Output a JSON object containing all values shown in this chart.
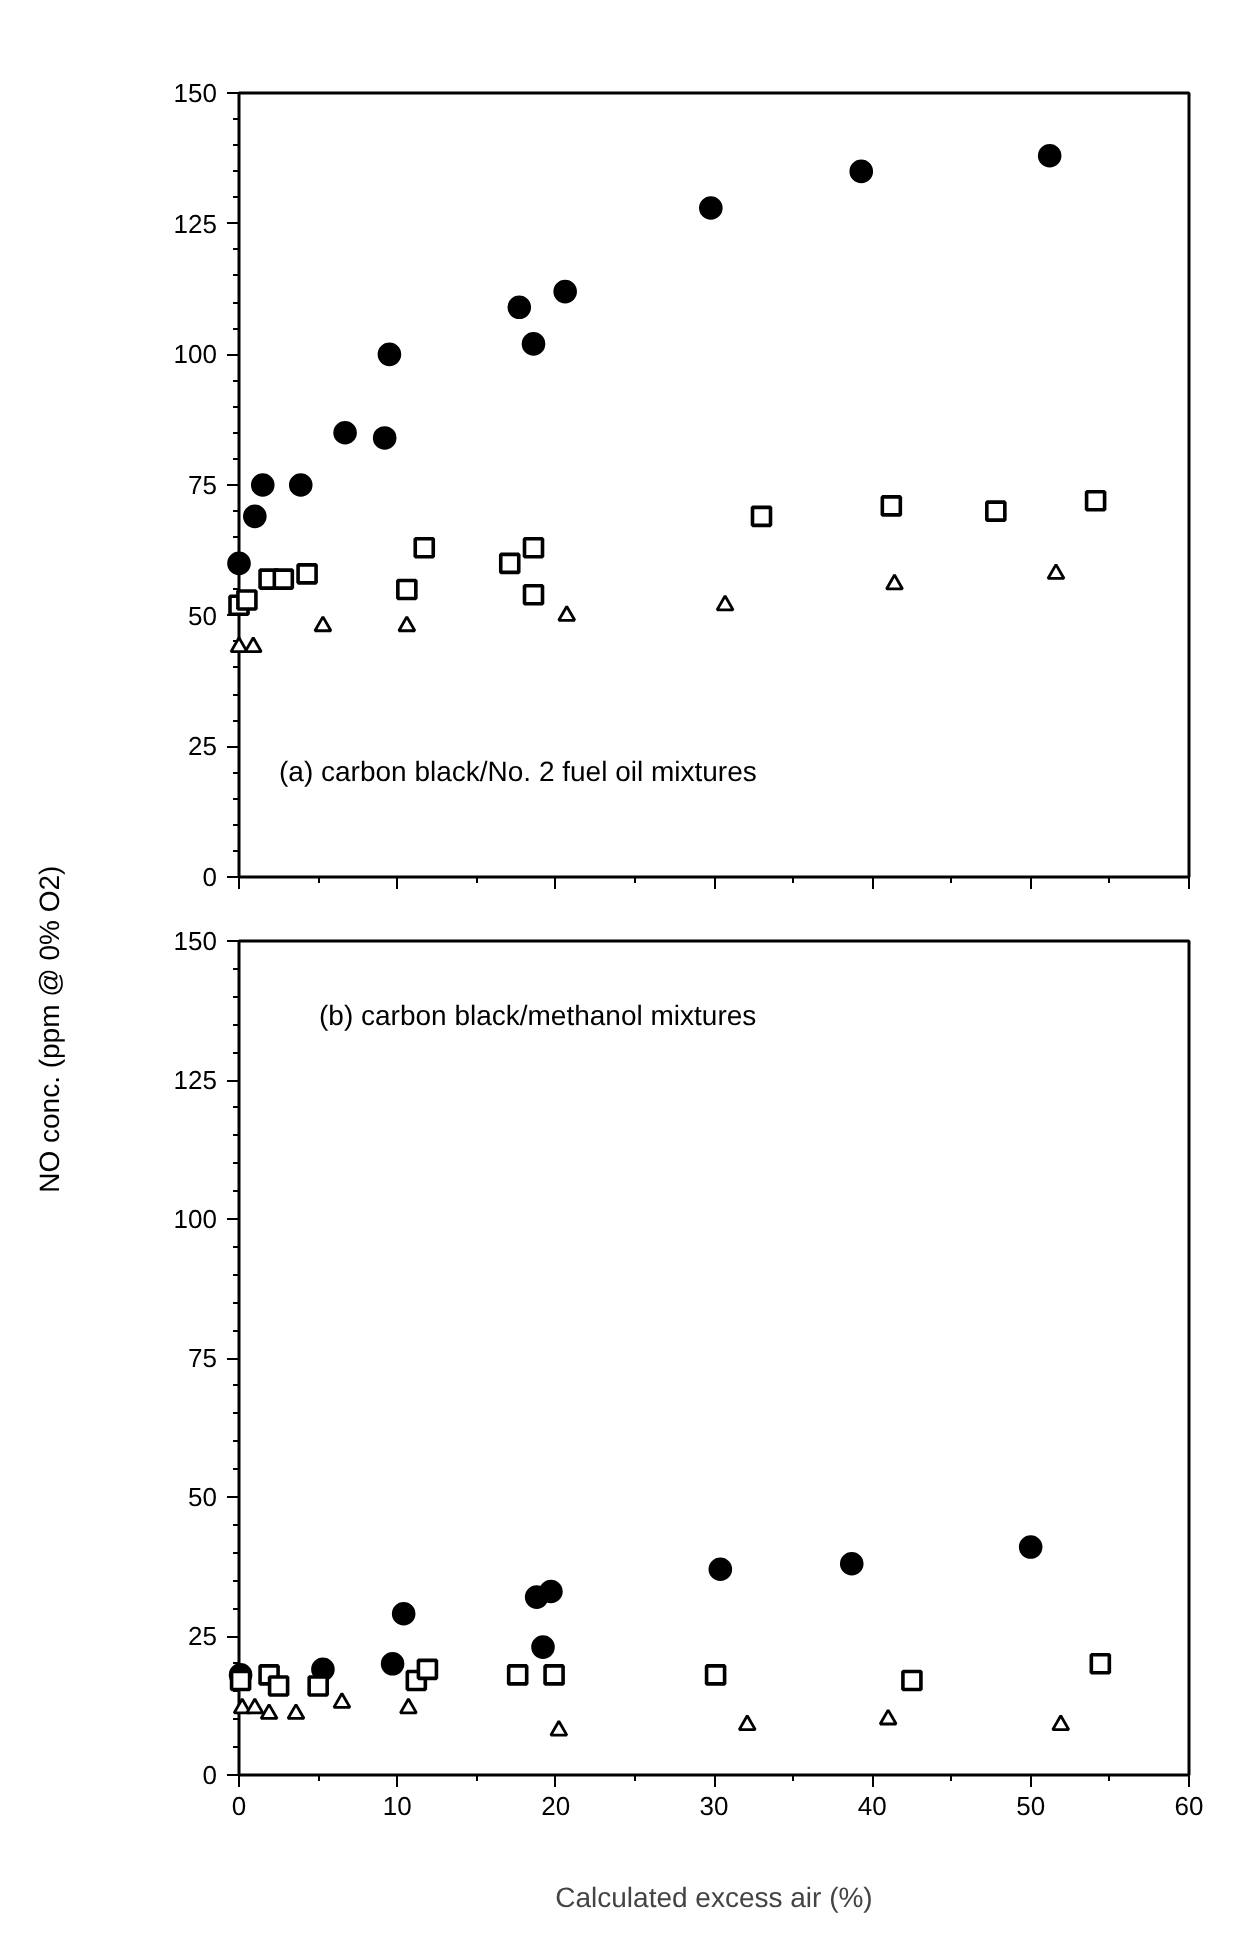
{
  "chart_data": [
    {
      "type": "scatter",
      "ylabel": "NO conc. (ppm @ 0% O2)",
      "annotations": [
        "(a) carbon black/No. 2 fuel oil mixtures"
      ],
      "tick_labels": "y",
      "xlim": [
        0,
        60
      ],
      "ylim": [
        0,
        150
      ],
      "xticks": [
        0,
        {
          "value": 5,
          "label": null
        },
        10,
        {
          "value": 15,
          "label": null
        },
        20,
        {
          "value": 25,
          "label": null
        },
        30,
        {
          "value": 35,
          "label": null
        },
        40,
        {
          "value": 45,
          "label": null
        },
        50,
        {
          "value": 55,
          "label": null
        },
        60
      ],
      "yticks": [
        0,
        {
          "value": 5,
          "label": null
        },
        {
          "value": 10,
          "label": null
        },
        {
          "value": 15,
          "label": null
        },
        {
          "value": 20,
          "label": null
        },
        25,
        {
          "value": 30,
          "label": null
        },
        {
          "value": 35,
          "label": null
        },
        {
          "value": 40,
          "label": null
        },
        {
          "value": 45,
          "label": null
        },
        50,
        {
          "value": 55,
          "label": null
        },
        {
          "value": 60,
          "label": null
        },
        {
          "value": 65,
          "label": null
        },
        {
          "value": 70,
          "label": null
        },
        75,
        {
          "value": 80,
          "label": null
        },
        {
          "value": 85,
          "label": null
        },
        {
          "value": 90,
          "label": null
        },
        {
          "value": 95,
          "label": null
        },
        100,
        {
          "value": 105,
          "label": null
        },
        {
          "value": 110,
          "label": null
        },
        {
          "value": 115,
          "label": null
        },
        {
          "value": 120,
          "label": null
        },
        125,
        {
          "value": 130,
          "label": null
        },
        {
          "value": 135,
          "label": null
        },
        {
          "value": 140,
          "label": null
        },
        {
          "value": 145,
          "label": null
        },
        150
      ],
      "series": [
        {
          "marker": "circle",
          "color": "#000000",
          "x": [
            0,
            1,
            1.5,
            3.9,
            6.7,
            9.2,
            9.5,
            17.7,
            18.6,
            20.6,
            29.8,
            39.3,
            51.2
          ],
          "values": [
            60,
            69,
            75,
            75,
            85,
            84,
            100,
            109,
            102,
            112,
            128,
            135,
            138
          ]
        },
        {
          "marker": "square",
          "color": "#000000",
          "x": [
            0,
            0.5,
            1.9,
            2.8,
            4.3,
            10.6,
            11.7,
            17.1,
            18.6,
            18.6,
            33,
            41.2,
            47.8,
            54.1
          ],
          "values": [
            52,
            53,
            57,
            57,
            58,
            55,
            63,
            60,
            63,
            54,
            69,
            71,
            70,
            72
          ]
        },
        {
          "marker": "triangle",
          "color": "#000000",
          "x": [
            0,
            0.9,
            5.3,
            10.6,
            20.7,
            30.7,
            41.4,
            51.6
          ],
          "values": [
            44,
            44,
            48,
            48,
            50,
            52,
            56,
            58
          ]
        }
      ]
    },
    {
      "type": "scatter",
      "xlabel": "Calculated excess air (%)",
      "annotations": [
        "(b) carbon black/methanol mixtures"
      ],
      "xlim": [
        0,
        60
      ],
      "ylim": [
        0,
        150
      ],
      "xticks": [
        0,
        {
          "value": 5,
          "label": null
        },
        10,
        {
          "value": 15,
          "label": null
        },
        20,
        {
          "value": 25,
          "label": null
        },
        30,
        {
          "value": 35,
          "label": null
        },
        40,
        {
          "value": 45,
          "label": null
        },
        50,
        {
          "value": 55,
          "label": null
        },
        60
      ],
      "yticks": [
        0,
        {
          "value": 5,
          "label": null
        },
        {
          "value": 10,
          "label": null
        },
        {
          "value": 15,
          "label": null
        },
        {
          "value": 20,
          "label": null
        },
        25,
        {
          "value": 30,
          "label": null
        },
        {
          "value": 35,
          "label": null
        },
        {
          "value": 40,
          "label": null
        },
        {
          "value": 45,
          "label": null
        },
        50,
        {
          "value": 55,
          "label": null
        },
        {
          "value": 60,
          "label": null
        },
        {
          "value": 65,
          "label": null
        },
        {
          "value": 70,
          "label": null
        },
        75,
        {
          "value": 80,
          "label": null
        },
        {
          "value": 85,
          "label": null
        },
        {
          "value": 90,
          "label": null
        },
        {
          "value": 95,
          "label": null
        },
        100,
        {
          "value": 105,
          "label": null
        },
        {
          "value": 110,
          "label": null
        },
        {
          "value": 115,
          "label": null
        },
        {
          "value": 120,
          "label": null
        },
        125,
        {
          "value": 130,
          "label": null
        },
        {
          "value": 135,
          "label": null
        },
        {
          "value": 140,
          "label": null
        },
        {
          "value": 145,
          "label": null
        },
        150
      ],
      "series": [
        {
          "marker": "circle",
          "color": "#000000",
          "x": [
            0.1,
            5.3,
            9.7,
            10.4,
            18.8,
            19.7,
            19.2,
            30.4,
            38.7,
            50
          ],
          "values": [
            18,
            19,
            20,
            29,
            32,
            33,
            23,
            37,
            38,
            41
          ]
        },
        {
          "marker": "square",
          "color": "#000000",
          "x": [
            0.1,
            1.9,
            2.5,
            5,
            11.2,
            11.9,
            17.6,
            19.9,
            30.1,
            42.5,
            54.4
          ],
          "values": [
            17,
            18,
            16,
            16,
            17,
            19,
            18,
            18,
            18,
            17,
            20
          ]
        },
        {
          "marker": "triangle",
          "color": "#000000",
          "x": [
            0.2,
            1,
            1.9,
            3.6,
            6.5,
            10.7,
            20.2,
            32.1,
            41,
            51.9
          ],
          "values": [
            12,
            12,
            11,
            11,
            13,
            12,
            8,
            9,
            10,
            9
          ]
        }
      ]
    }
  ]
}
